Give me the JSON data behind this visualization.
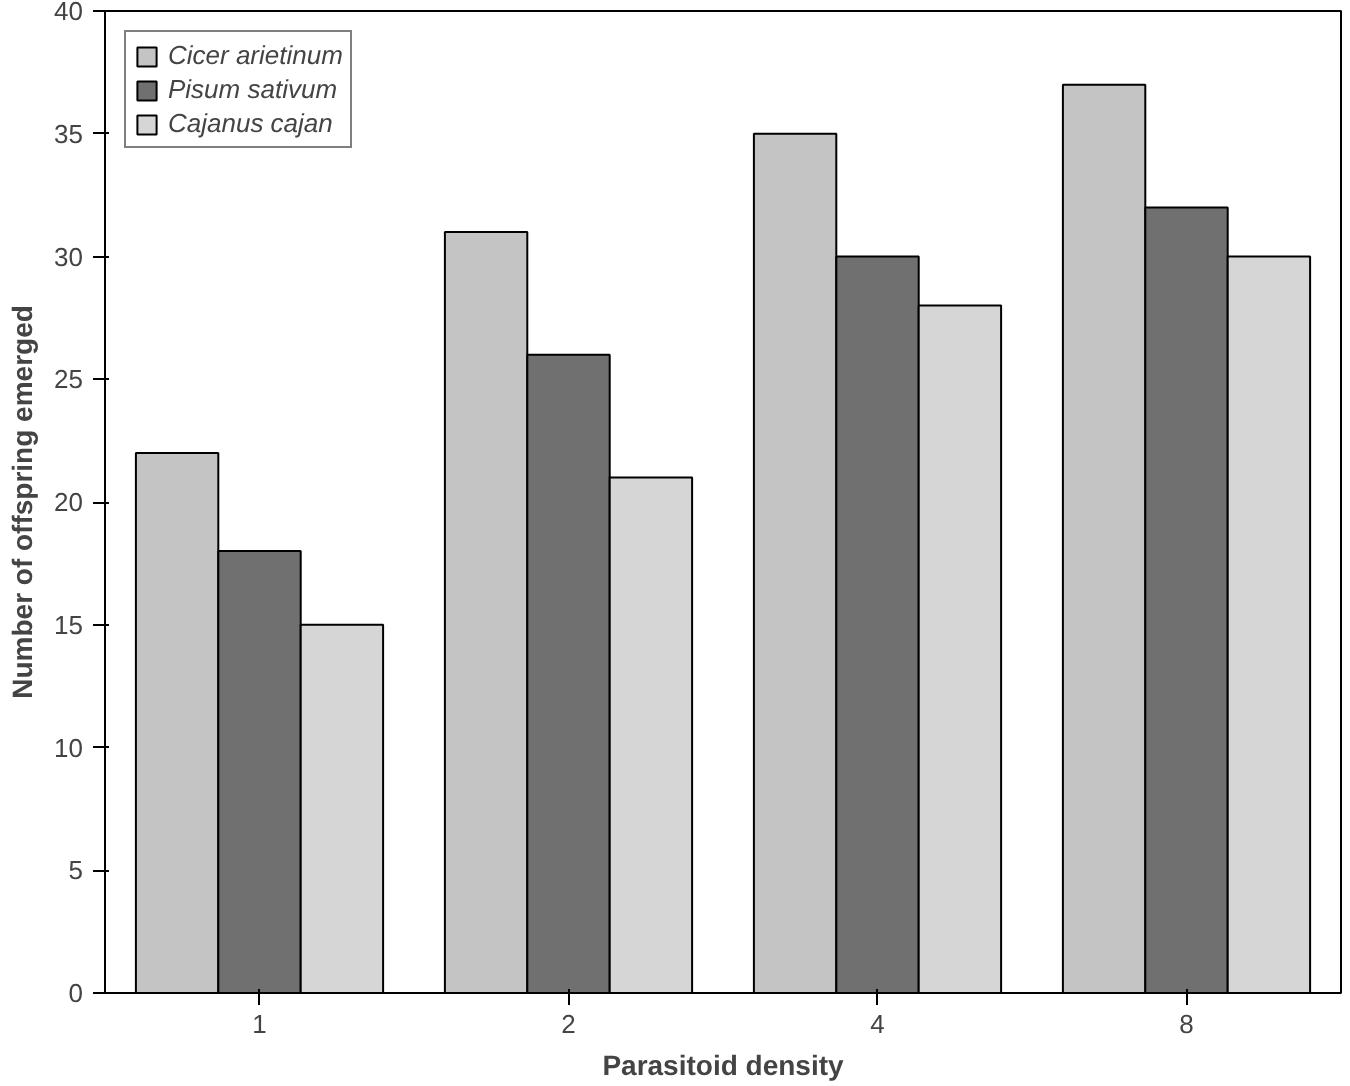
{
  "chart_data": {
    "type": "bar",
    "xlabel": "Parasitoid density",
    "ylabel": "Number of offspring emerged",
    "categories": [
      "1",
      "2",
      "4",
      "8"
    ],
    "series": [
      {
        "name": "Cicer arietinum",
        "color": "#c4c4c4",
        "values": [
          22,
          31,
          35,
          37
        ]
      },
      {
        "name": "Pisum sativum",
        "color": "#707070",
        "values": [
          18,
          26,
          30,
          32
        ]
      },
      {
        "name": "Cajanus cajan",
        "color": "#d6d6d6",
        "values": [
          15,
          21,
          28,
          30
        ]
      }
    ],
    "ylim": [
      0,
      40
    ],
    "yticks": [
      0,
      5,
      10,
      15,
      20,
      25,
      30,
      35,
      40
    ],
    "grid": false,
    "legend": "top left"
  }
}
